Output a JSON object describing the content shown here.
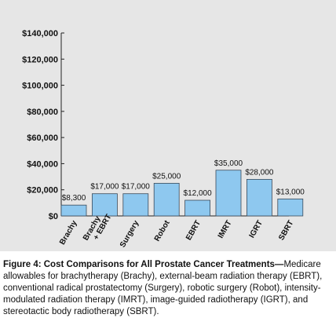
{
  "chart_data": {
    "type": "bar",
    "categories": [
      [
        "Brachy"
      ],
      [
        "Brachy",
        "+ EBRT"
      ],
      [
        "Surgery"
      ],
      [
        "Robot"
      ],
      [
        "EBRT"
      ],
      [
        "IMRT"
      ],
      [
        "IGRT"
      ],
      [
        "SBRT"
      ]
    ],
    "values": [
      8300,
      17000,
      17000,
      25000,
      12000,
      35000,
      28000,
      13000
    ],
    "data_labels": [
      "$8,300",
      "$17,000",
      "$17,000",
      "$25,000",
      "$12,000",
      "$35,000",
      "$28,000",
      "$13,000"
    ],
    "y_ticks": [
      0,
      20000,
      40000,
      60000,
      80000,
      100000,
      120000,
      140000
    ],
    "y_tick_labels": [
      "$0",
      "$20,000",
      "$40,000",
      "$60,000",
      "$80,000",
      "$100,000",
      "$120,000",
      "$140,000"
    ],
    "ylim": [
      0,
      140000
    ],
    "title": "",
    "xlabel": "",
    "ylabel": "",
    "grid": false,
    "bar_color": "#8ec8ef",
    "bar_edge_color": "#3a4a5a",
    "panel_color": "#e6e6e6"
  },
  "caption": {
    "title": "Figure 4: Cost Comparisons for All Prostate Cancer Treatments—",
    "body": "Medicare allowables for brachytherapy (Brachy), external-beam radiation therapy (EBRT), conventional radical prostatectomy (Surgery), robotic surgery (Robot), intensity-modulated radiation therapy (IMRT), image-guided radiotherapy (IGRT), and stereotactic body radiotherapy (SBRT)."
  }
}
